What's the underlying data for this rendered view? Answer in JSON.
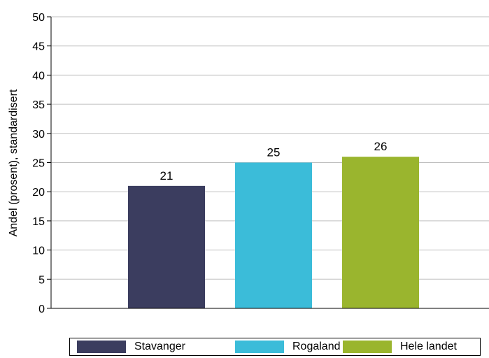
{
  "chart_data": {
    "type": "bar",
    "categories": [
      "Stavanger",
      "Rogaland",
      "Hele landet"
    ],
    "values": [
      21,
      25,
      26
    ],
    "colors": [
      "#3b3d5f",
      "#3bbcd9",
      "#9ab52e"
    ],
    "title": "",
    "xlabel": "",
    "ylabel": "Andel (prosent), standardisert",
    "ylim": [
      0,
      50
    ],
    "yticks": [
      0,
      5,
      10,
      15,
      20,
      25,
      30,
      35,
      40,
      45,
      50
    ],
    "grid": true,
    "legend_position": "bottom",
    "data_labels": [
      "21",
      "25",
      "26"
    ]
  },
  "legend": {
    "items": [
      {
        "label": "Stavanger",
        "color": "#3b3d5f"
      },
      {
        "label": "Rogaland",
        "color": "#3bbcd9"
      },
      {
        "label": "Hele landet",
        "color": "#9ab52e"
      }
    ]
  }
}
